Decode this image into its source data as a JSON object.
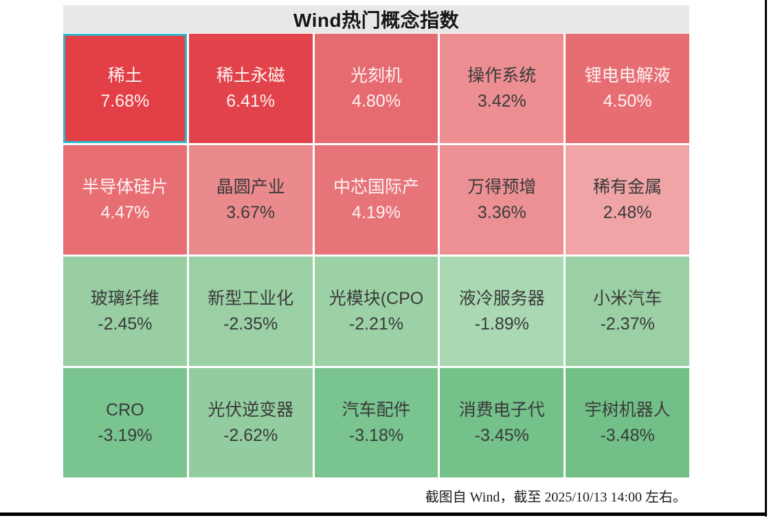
{
  "caption": "截图自 Wind，截至 2025/10/13 14:00 左右。",
  "colors": {
    "header_bg": "#e9e8e7",
    "selected_border": "#2eb7c6",
    "light_text": "#fdf2f2",
    "dark_text": "#3a3a3a",
    "up_strong": "#e24046",
    "down_strong": "#73c189"
  },
  "chart_data": {
    "type": "heatmap",
    "title": "Wind热门概念指数",
    "rows": 4,
    "columns": 5,
    "legend": "red = up, green = down, intensity ~ |change %|",
    "tiles": [
      {
        "name": "稀土",
        "value": 7.68,
        "display": "7.68%",
        "bg": "#e24046",
        "text": "light",
        "selected": true
      },
      {
        "name": "稀土永磁",
        "value": 6.41,
        "display": "6.41%",
        "bg": "#e2434a",
        "text": "light",
        "selected": false
      },
      {
        "name": "光刻机",
        "value": 4.8,
        "display": "4.80%",
        "bg": "#e66b70",
        "text": "light",
        "selected": false
      },
      {
        "name": "操作系统",
        "value": 3.42,
        "display": "3.42%",
        "bg": "#ed8f92",
        "text": "dark",
        "selected": false
      },
      {
        "name": "锂电电解液",
        "value": 4.5,
        "display": "4.50%",
        "bg": "#e66e72",
        "text": "light",
        "selected": false
      },
      {
        "name": "半导体硅片",
        "value": 4.47,
        "display": "4.47%",
        "bg": "#e76f74",
        "text": "light",
        "selected": false
      },
      {
        "name": "晶圆产业",
        "value": 3.67,
        "display": "3.67%",
        "bg": "#eb8a8d",
        "text": "dark",
        "selected": false
      },
      {
        "name": "中芯国际产",
        "value": 4.19,
        "display": "4.19%",
        "bg": "#e77479",
        "text": "light",
        "selected": false
      },
      {
        "name": "万得预增",
        "value": 3.36,
        "display": "3.36%",
        "bg": "#ec9093",
        "text": "dark",
        "selected": false
      },
      {
        "name": "稀有金属",
        "value": 2.48,
        "display": "2.48%",
        "bg": "#f0a4a6",
        "text": "dark",
        "selected": false
      },
      {
        "name": "玻璃纤维",
        "value": -2.45,
        "display": "-2.45%",
        "bg": "#98cea2",
        "text": "dark",
        "selected": false
      },
      {
        "name": "新型工业化",
        "value": -2.35,
        "display": "-2.35%",
        "bg": "#9ad0a4",
        "text": "dark",
        "selected": false
      },
      {
        "name": "光模块(CPO",
        "value": -2.21,
        "display": "-2.21%",
        "bg": "#9cd1a6",
        "text": "dark",
        "selected": false
      },
      {
        "name": "液冷服务器",
        "value": -1.89,
        "display": "-1.89%",
        "bg": "#a9d8b2",
        "text": "dark",
        "selected": false
      },
      {
        "name": "小米汽车",
        "value": -2.37,
        "display": "-2.37%",
        "bg": "#9ad0a4",
        "text": "dark",
        "selected": false
      },
      {
        "name": "CRO",
        "value": -3.19,
        "display": "-3.19%",
        "bg": "#79c48f",
        "text": "dark",
        "selected": false
      },
      {
        "name": "光伏逆变器",
        "value": -2.62,
        "display": "-2.62%",
        "bg": "#93cd9f",
        "text": "dark",
        "selected": false
      },
      {
        "name": "汽车配件",
        "value": -3.18,
        "display": "-3.18%",
        "bg": "#79c48f",
        "text": "dark",
        "selected": false
      },
      {
        "name": "消费电子代",
        "value": -3.45,
        "display": "-3.45%",
        "bg": "#74c18a",
        "text": "dark",
        "selected": false
      },
      {
        "name": "宇树机器人",
        "value": -3.48,
        "display": "-3.48%",
        "bg": "#72c088",
        "text": "dark",
        "selected": false
      }
    ]
  }
}
